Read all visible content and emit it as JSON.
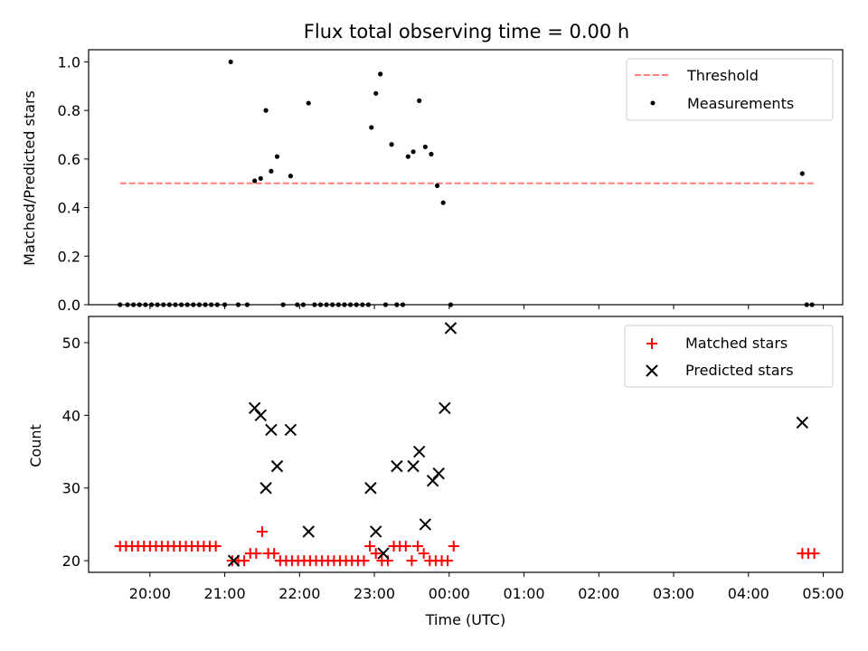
{
  "chart_data": [
    {
      "type": "scatter",
      "title": "Flux total observing time = 0.00 h",
      "xlabel": "",
      "ylabel": "Matched/Predicted stars",
      "xlim": [
        19.18,
        29.26
      ],
      "ylim": [
        0,
        1.05
      ],
      "yticks": [
        0.0,
        0.2,
        0.4,
        0.6,
        0.8,
        1.0
      ],
      "ytick_labels": [
        "0.0",
        "0.2",
        "0.4",
        "0.6",
        "0.8",
        "1.0"
      ],
      "legend_position": "top-right",
      "legend": [
        "Threshold",
        "Measurements"
      ],
      "threshold": {
        "name": "Threshold",
        "y": 0.5,
        "x_start": 19.6,
        "x_end": 28.9,
        "color": "#ff7f7f"
      },
      "series": [
        {
          "name": "Measurements",
          "color": "#000000",
          "x": [
            19.6,
            19.7,
            19.78,
            19.86,
            19.94,
            20.02,
            20.1,
            20.18,
            20.26,
            20.34,
            20.42,
            20.5,
            20.58,
            20.66,
            20.74,
            20.82,
            20.9,
            21.0,
            21.08,
            21.18,
            21.3,
            21.4,
            21.48,
            21.55,
            21.62,
            21.7,
            21.78,
            21.88,
            21.97,
            22.05,
            22.12,
            22.2,
            22.28,
            22.36,
            22.44,
            22.52,
            22.6,
            22.68,
            22.76,
            22.84,
            22.92,
            22.96,
            23.02,
            23.08,
            23.15,
            23.23,
            23.3,
            23.38,
            23.45,
            23.52,
            23.6,
            23.68,
            23.76,
            23.84,
            23.92,
            24.02,
            28.72,
            28.78,
            28.85
          ],
          "y": [
            0,
            0,
            0,
            0,
            0,
            0,
            0,
            0,
            0,
            0,
            0,
            0,
            0,
            0,
            0,
            0,
            0,
            0,
            1.0,
            0,
            0,
            0.51,
            0.52,
            0.8,
            0.55,
            0.61,
            0,
            0.53,
            0,
            0,
            0.83,
            0,
            0,
            0,
            0,
            0,
            0,
            0,
            0,
            0,
            0,
            0.73,
            0.87,
            0.95,
            0,
            0.66,
            0,
            0,
            0.61,
            0.63,
            0.84,
            0.65,
            0.62,
            0.49,
            0.42,
            0,
            0.54,
            0,
            0
          ]
        }
      ]
    },
    {
      "type": "scatter",
      "title": "",
      "xlabel": "Time (UTC)",
      "ylabel": "Count",
      "xlim": [
        19.18,
        29.26
      ],
      "ylim": [
        18.4,
        53.6
      ],
      "yticks": [
        20,
        30,
        40,
        50
      ],
      "ytick_labels": [
        "20",
        "30",
        "40",
        "50"
      ],
      "xticks": [
        20,
        21,
        22,
        23,
        24,
        25,
        26,
        27,
        28,
        29
      ],
      "xtick_labels": [
        "20:00",
        "21:00",
        "22:00",
        "23:00",
        "00:00",
        "01:00",
        "02:00",
        "03:00",
        "04:00",
        "05:00"
      ],
      "legend_position": "top-right",
      "legend": [
        "Matched stars",
        "Predicted stars"
      ],
      "series": [
        {
          "name": "Matched stars",
          "marker": "plus",
          "color": "#ff0000",
          "x": [
            19.6,
            19.68,
            19.76,
            19.84,
            19.92,
            20.0,
            20.08,
            20.16,
            20.24,
            20.32,
            20.4,
            20.48,
            20.56,
            20.64,
            20.72,
            20.8,
            20.88,
            21.1,
            21.18,
            21.26,
            21.34,
            21.42,
            21.5,
            21.58,
            21.66,
            21.74,
            21.82,
            21.9,
            21.98,
            22.06,
            22.14,
            22.22,
            22.3,
            22.38,
            22.46,
            22.54,
            22.62,
            22.7,
            22.78,
            22.86,
            22.94,
            23.02,
            23.1,
            23.18,
            23.26,
            23.34,
            23.42,
            23.5,
            23.58,
            23.66,
            23.74,
            23.82,
            23.9,
            23.98,
            24.06,
            28.72,
            28.8,
            28.88
          ],
          "y": [
            22,
            22,
            22,
            22,
            22,
            22,
            22,
            22,
            22,
            22,
            22,
            22,
            22,
            22,
            22,
            22,
            22,
            20,
            20,
            20,
            21,
            21,
            24,
            21,
            21,
            20,
            20,
            20,
            20,
            20,
            20,
            20,
            20,
            20,
            20,
            20,
            20,
            20,
            20,
            20,
            22,
            21,
            20,
            20,
            22,
            22,
            22,
            20,
            22,
            21,
            20,
            20,
            20,
            20,
            22,
            21,
            21,
            21
          ]
        },
        {
          "name": "Predicted stars",
          "marker": "x",
          "color": "#000000",
          "x": [
            21.12,
            21.4,
            21.48,
            21.55,
            21.62,
            21.7,
            21.88,
            22.12,
            22.95,
            23.02,
            23.12,
            23.3,
            23.52,
            23.6,
            23.68,
            23.78,
            23.86,
            23.94,
            24.02,
            28.72
          ],
          "y": [
            20,
            41,
            40,
            30,
            38,
            33,
            38,
            24,
            30,
            24,
            21,
            33,
            33,
            35,
            25,
            31,
            32,
            41,
            52,
            39
          ]
        }
      ]
    }
  ]
}
